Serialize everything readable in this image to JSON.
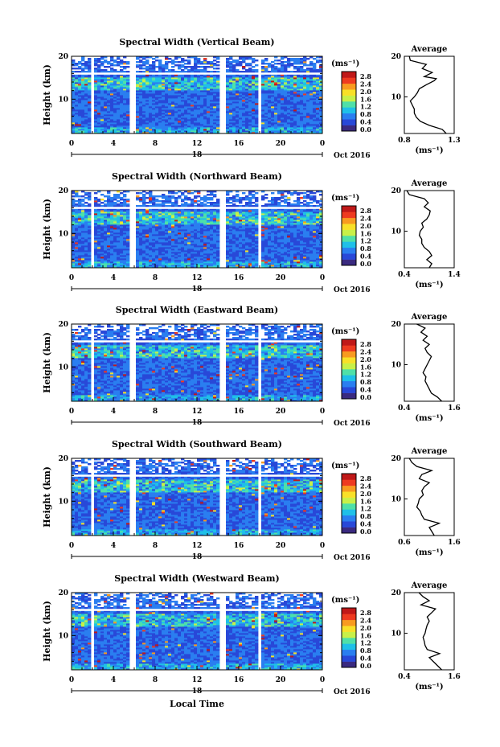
{
  "panels": [
    {
      "title": "Spectral Width (Vertical Beam)",
      "avg_xticks": [
        "0.8",
        "1.3"
      ],
      "avg_range": [
        0.8,
        1.3
      ],
      "avg_profile": [
        [
          1.22,
          1
        ],
        [
          1.18,
          2
        ],
        [
          1.05,
          3
        ],
        [
          0.96,
          4
        ],
        [
          0.92,
          5
        ],
        [
          0.9,
          6
        ],
        [
          0.9,
          7
        ],
        [
          0.88,
          8
        ],
        [
          0.86,
          9
        ],
        [
          0.9,
          10
        ],
        [
          0.93,
          11
        ],
        [
          0.95,
          12
        ],
        [
          1.02,
          13
        ],
        [
          1.1,
          14
        ],
        [
          1.12,
          14.5
        ],
        [
          1.0,
          15
        ],
        [
          1.08,
          16
        ],
        [
          0.98,
          17
        ],
        [
          1.02,
          18
        ],
        [
          0.86,
          19
        ],
        [
          0.85,
          20
        ]
      ]
    },
    {
      "title": "Spectral Width (Northward Beam)",
      "avg_xticks": [
        "0.4",
        "1.4"
      ],
      "avg_range": [
        0.4,
        1.4
      ],
      "avg_profile": [
        [
          0.9,
          1
        ],
        [
          0.95,
          2
        ],
        [
          0.85,
          3
        ],
        [
          0.95,
          4
        ],
        [
          0.9,
          5
        ],
        [
          0.8,
          6
        ],
        [
          0.75,
          7
        ],
        [
          0.75,
          8
        ],
        [
          0.7,
          9
        ],
        [
          0.72,
          10
        ],
        [
          0.78,
          11
        ],
        [
          0.75,
          12
        ],
        [
          0.85,
          13
        ],
        [
          0.9,
          14
        ],
        [
          0.92,
          15
        ],
        [
          0.8,
          16
        ],
        [
          0.88,
          17
        ],
        [
          0.8,
          18
        ],
        [
          0.5,
          19
        ],
        [
          0.45,
          20
        ]
      ]
    },
    {
      "title": "Spectral Width (Eastward Beam)",
      "avg_xticks": [
        "0.4",
        "1.6"
      ],
      "avg_range": [
        0.4,
        1.6
      ],
      "avg_profile": [
        [
          1.3,
          1
        ],
        [
          1.2,
          2
        ],
        [
          1.05,
          3
        ],
        [
          1.0,
          4
        ],
        [
          0.95,
          5
        ],
        [
          0.9,
          6
        ],
        [
          0.92,
          7
        ],
        [
          0.85,
          8
        ],
        [
          0.9,
          9
        ],
        [
          0.95,
          10
        ],
        [
          1.0,
          11
        ],
        [
          1.05,
          12
        ],
        [
          0.95,
          13
        ],
        [
          0.9,
          14
        ],
        [
          1.0,
          15
        ],
        [
          0.85,
          16
        ],
        [
          0.95,
          17
        ],
        [
          0.8,
          18
        ],
        [
          0.9,
          19
        ],
        [
          0.7,
          20
        ]
      ]
    },
    {
      "title": "Spectral Width (Southward Beam)",
      "avg_xticks": [
        "0.6",
        "1.6"
      ],
      "avg_range": [
        0.6,
        1.6
      ],
      "avg_profile": [
        [
          1.2,
          1
        ],
        [
          1.15,
          2
        ],
        [
          1.1,
          3
        ],
        [
          1.3,
          4
        ],
        [
          1.0,
          5
        ],
        [
          0.95,
          6
        ],
        [
          0.92,
          7
        ],
        [
          0.85,
          8
        ],
        [
          0.88,
          9
        ],
        [
          0.9,
          10
        ],
        [
          0.98,
          11
        ],
        [
          0.95,
          12
        ],
        [
          1.0,
          13
        ],
        [
          1.1,
          14
        ],
        [
          0.9,
          15
        ],
        [
          0.95,
          16
        ],
        [
          1.15,
          17
        ],
        [
          0.85,
          18
        ],
        [
          0.75,
          19
        ],
        [
          0.7,
          20
        ]
      ]
    },
    {
      "title": "Spectral Width (Westward Beam)",
      "avg_xticks": [
        "0.4",
        "1.6"
      ],
      "avg_range": [
        0.4,
        1.6
      ],
      "avg_profile": [
        [
          1.3,
          1
        ],
        [
          1.2,
          2
        ],
        [
          1.1,
          3
        ],
        [
          1.0,
          4
        ],
        [
          1.25,
          5
        ],
        [
          0.95,
          6
        ],
        [
          0.9,
          7
        ],
        [
          0.88,
          8
        ],
        [
          0.85,
          9
        ],
        [
          0.9,
          10
        ],
        [
          0.92,
          11
        ],
        [
          0.95,
          12
        ],
        [
          1.0,
          13
        ],
        [
          0.95,
          14
        ],
        [
          1.05,
          15
        ],
        [
          1.15,
          16
        ],
        [
          0.8,
          17
        ],
        [
          1.0,
          18
        ],
        [
          0.85,
          19
        ],
        [
          0.75,
          20
        ]
      ]
    }
  ],
  "common": {
    "ylabel": "Height (km)",
    "yticks": [
      "20",
      "10"
    ],
    "xticks": [
      "0",
      "4",
      "8",
      "12",
      "16",
      "20",
      "0"
    ],
    "date_day": "18",
    "date_month": "Oct 2016",
    "cbar_unit": "(ms⁻¹)",
    "cbar_ticks": [
      "2.8",
      "2.4",
      "2.0",
      "1.6",
      "1.2",
      "0.8",
      "0.4",
      "0.0"
    ],
    "avg_title": "Average",
    "avg_yticks": [
      "20",
      "10"
    ],
    "avg_unit": "(ms⁻¹)",
    "xlabel": "Local Time",
    "colors": [
      "#3a2a80",
      "#2848d8",
      "#2a7ef0",
      "#1fc0e8",
      "#4fe0a8",
      "#c8f048",
      "#f8e028",
      "#f89a20",
      "#ee3a20",
      "#c01818"
    ]
  },
  "chart_data": {
    "type": "heatmap",
    "x_range_hours": [
      0,
      24
    ],
    "y_range_km": [
      2,
      20
    ],
    "color_range": [
      0.0,
      3.0
    ],
    "colorbar_unit": "(ms⁻¹)",
    "panels": [
      "Spectral Width (Vertical Beam)",
      "Spectral Width (Northward Beam)",
      "Spectral Width (Eastward Beam)",
      "Spectral Width (Southward Beam)",
      "Spectral Width (Westward Beam)"
    ]
  }
}
